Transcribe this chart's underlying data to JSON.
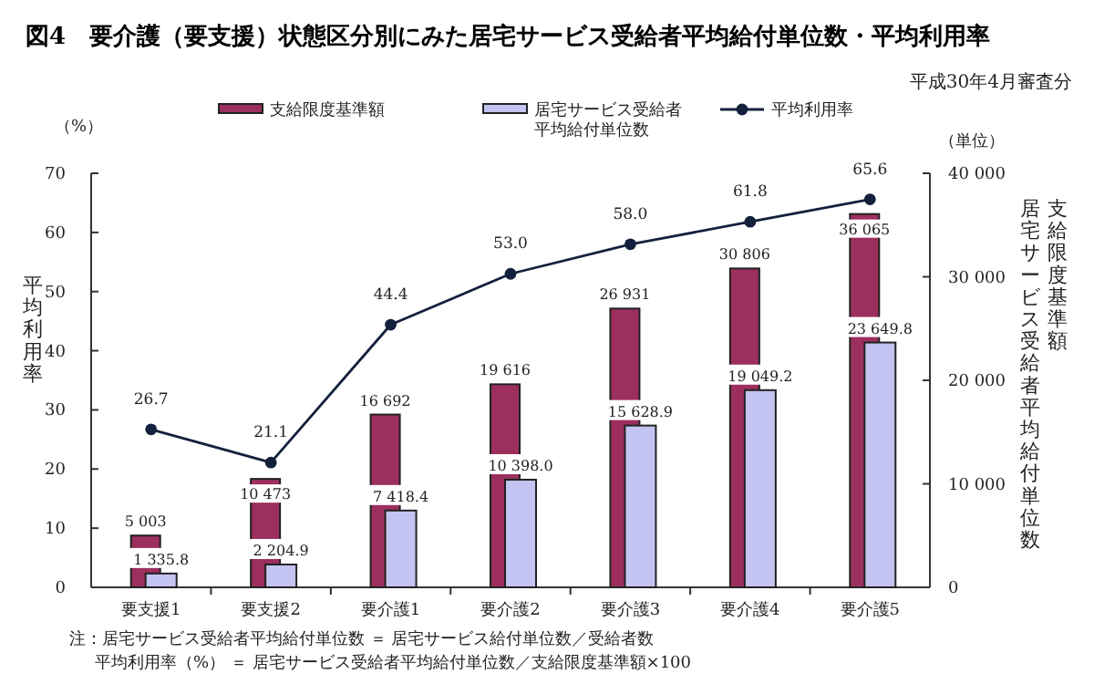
{
  "chart_data": {
    "type": "bar",
    "title": "図4　要介護（要支援）状態区分別にみた居宅サービス受給者平均給付単位数・平均利用率",
    "subtitle": "平成30年4月審査分",
    "ylabel": "平均利用率",
    "y2label": "支給限度基準額",
    "categories": [
      "要支援1",
      "要支援2",
      "要介護1",
      "要介護2",
      "要介護3",
      "要介護4",
      "要介護5"
    ],
    "series": [
      {
        "name": "支給限度基準額",
        "axis": "y2",
        "color": "#9c2f5e",
        "values": [
          5003,
          10473,
          16692,
          19616,
          26931,
          30806,
          36065
        ],
        "value_labels": [
          "5 003",
          "10 473",
          "16 692",
          "19 616",
          "26 931",
          "30 806",
          "36 065"
        ]
      },
      {
        "name": "居宅サービス受給者平均給付単位数",
        "axis": "y2",
        "color": "#c4c4f2",
        "values": [
          1335.8,
          2204.9,
          7418.4,
          10398.0,
          15628.9,
          19049.2,
          23649.8
        ],
        "value_labels": [
          "1 335.8",
          "2 204.9",
          "7 418.4",
          "10 398.0",
          "15 628.9",
          "19 049.2",
          "23 649.8"
        ]
      },
      {
        "name": "平均利用率",
        "type": "line",
        "axis": "y",
        "color": "#14213d",
        "values": [
          26.7,
          21.1,
          44.4,
          53.0,
          58.0,
          61.8,
          65.6
        ],
        "value_labels": [
          "26.7",
          "21.1",
          "44.4",
          "53.0",
          "58.0",
          "61.8",
          "65.6"
        ]
      }
    ],
    "ylim": [
      0,
      70
    ],
    "yticks": [
      0,
      10,
      20,
      30,
      40,
      50,
      60,
      70
    ],
    "y2lim": [
      0,
      40000
    ],
    "y2ticks": [
      0,
      {
        "value": 10000,
        "label": "10 000"
      },
      {
        "value": 20000,
        "label": "20 000"
      },
      {
        "value": 30000,
        "label": "30 000"
      },
      {
        "value": 40000,
        "label": "40 000"
      }
    ],
    "marker": "circle",
    "line_style": "solid",
    "legend": "top",
    "grid": false,
    "annotations": [
      "（%）",
      "（単位）",
      "居宅サービス受給者平均給付単位数",
      "注：居宅サービス受給者平均給付単位数 ＝ 居宅サービス給付単位数／受給者数",
      "平均利用率（%） ＝ 居宅サービス受給者平均給付単位数／支給限度基準額×100"
    ]
  }
}
